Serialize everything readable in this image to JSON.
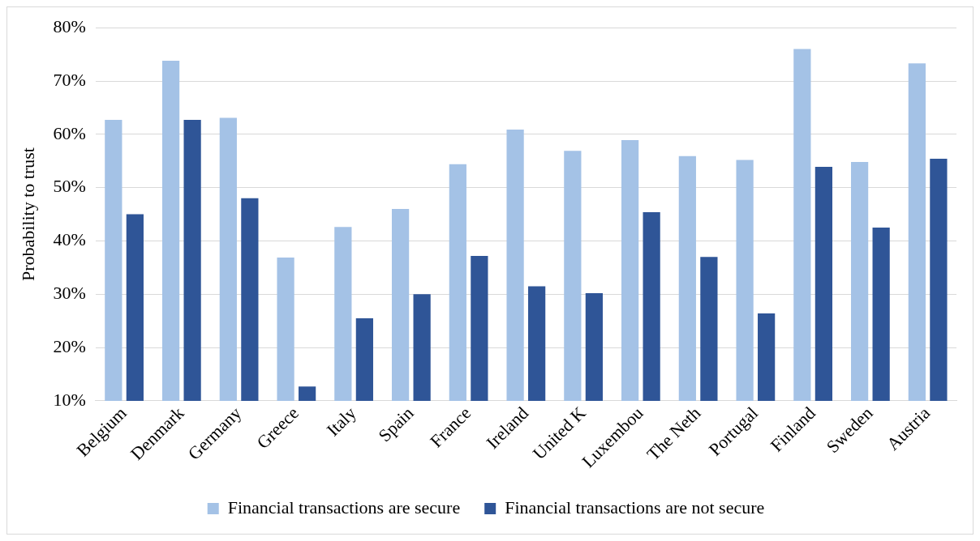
{
  "chart_data": {
    "type": "bar",
    "ylabel": "Probability to trust",
    "categories": [
      "Belgium",
      "Denmark",
      "Germany",
      "Greece",
      "Italy",
      "Spain",
      "France",
      "Ireland",
      "United K",
      "Luxembou",
      "The Neth",
      "Portugal",
      "Finland",
      "Sweden",
      "Austria"
    ],
    "series": [
      {
        "name": "Financial transactions are secure",
        "color": "#a4c2e6",
        "values": [
          62.7,
          73.8,
          63.1,
          36.9,
          42.6,
          46.0,
          54.4,
          60.9,
          56.9,
          58.9,
          55.9,
          55.2,
          76.0,
          54.8,
          73.3
        ]
      },
      {
        "name": "Financial transactions are not secure",
        "color": "#2f5597",
        "values": [
          45.0,
          62.7,
          48.0,
          12.7,
          25.5,
          30.0,
          37.2,
          31.5,
          30.2,
          45.4,
          37.0,
          26.4,
          53.9,
          42.5,
          55.4
        ]
      }
    ],
    "ylim": [
      10,
      80
    ],
    "yticks": [
      {
        "value": 10,
        "label": "10%"
      },
      {
        "value": 20,
        "label": "20%"
      },
      {
        "value": 30,
        "label": "30%"
      },
      {
        "value": 40,
        "label": "40%"
      },
      {
        "value": 50,
        "label": "50%"
      },
      {
        "value": 60,
        "label": "60%"
      },
      {
        "value": 70,
        "label": "70%"
      },
      {
        "value": 80,
        "label": "80%"
      }
    ],
    "grid": "y",
    "legend": "bottom"
  }
}
